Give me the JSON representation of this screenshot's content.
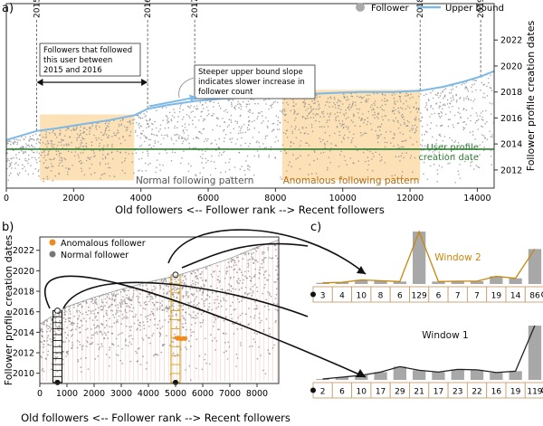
{
  "panel_labels": {
    "a": "a)",
    "b": "b)",
    "c": "c)"
  },
  "chart_data": [
    {
      "type": "scatter",
      "panel": "a",
      "xlabel": "Old followers <-- Follower rank --> Recent followers",
      "ylabel": "Follower profile creation dates",
      "xlim": [
        0,
        14500
      ],
      "ylim": [
        2010.6,
        2024.8
      ],
      "xticks": [
        0,
        2000,
        4000,
        6000,
        8000,
        10000,
        12000,
        14000
      ],
      "yticks": [
        2012,
        2014,
        2016,
        2018,
        2020,
        2022
      ],
      "legend": {
        "placement": "top-right",
        "items": [
          {
            "label": "Follower",
            "marker": "circle",
            "color": "#aaaaaa"
          },
          {
            "label": "Upper bound",
            "marker": "line",
            "color": "#7db9e8"
          }
        ]
      },
      "upper_bound": {
        "x": [
          0,
          900,
          1500,
          2200,
          3000,
          3800,
          4200,
          4800,
          5600,
          6500,
          7500,
          8500,
          9500,
          10500,
          11500,
          12300,
          13000,
          13600,
          14100,
          14500
        ],
        "y": [
          2014.3,
          2015.0,
          2015.2,
          2015.5,
          2015.8,
          2016.2,
          2016.7,
          2017.0,
          2017.3,
          2017.5,
          2017.6,
          2017.8,
          2017.9,
          2018.0,
          2018.0,
          2018.1,
          2018.4,
          2018.8,
          2019.2,
          2019.6
        ]
      },
      "year_markers": [
        {
          "label": "2015",
          "x": 900
        },
        {
          "label": "2016",
          "x": 4200
        },
        {
          "label": "2017",
          "x": 5600
        },
        {
          "label": "2018",
          "x": 12300
        },
        {
          "label": "2019",
          "x": 14100
        }
      ],
      "shaded_regions": [
        {
          "label": "Normal following pattern",
          "x": [
            1000,
            3800
          ]
        },
        {
          "label": "Anomalous following pattern",
          "x": [
            8200,
            12300
          ]
        }
      ],
      "horizontal_line": {
        "label_line1": "User profile",
        "label_line2": "creation date",
        "y": 2013.6,
        "color": "#2e7d32"
      },
      "annotations": [
        {
          "id": "followers_between",
          "lines": [
            "Followers that followed",
            "this user between",
            "2015 and 2016"
          ]
        },
        {
          "id": "steeper_slope",
          "lines": [
            "Steeper upper bound slope",
            "indicates slower increase in",
            "follower count"
          ]
        }
      ]
    },
    {
      "type": "scatter",
      "panel": "b",
      "xlabel": "Old followers <-- Follower rank --> Recent followers",
      "ylabel": "Follower profile creation dates",
      "xlim": [
        0,
        8800
      ],
      "ylim": [
        2009,
        2023.3
      ],
      "xticks": [
        0,
        1000,
        2000,
        3000,
        4000,
        5000,
        6000,
        7000,
        8000
      ],
      "yticks": [
        2010,
        2012,
        2014,
        2016,
        2018,
        2020,
        2022
      ],
      "legend": {
        "placement": "top-left",
        "items": [
          {
            "label": "Anomalous follower",
            "color": "#f08a1c"
          },
          {
            "label": "Normal follower",
            "color": "#777777"
          }
        ]
      },
      "upper_bound": {
        "x": [
          0,
          1000,
          2000,
          3000,
          4000,
          5000,
          6000,
          7000,
          8000,
          8800
        ],
        "y": [
          2014.8,
          2016.5,
          2017.4,
          2018.2,
          2018.9,
          2019.5,
          2020.3,
          2021.2,
          2022.3,
          2023.0
        ]
      },
      "windows": [
        {
          "name": "Window 1",
          "x": 650,
          "y_top": 2016.1,
          "y_bottom": 2009.1,
          "color": "#000000"
        },
        {
          "name": "Window 2",
          "x": 5000,
          "y_top": 2019.6,
          "y_bottom": 2009.1,
          "color": "#c8960a"
        }
      ],
      "anomalous_cluster": {
        "x": [
          5000,
          5400
        ],
        "y": 2013.4
      }
    },
    {
      "type": "bar",
      "panel": "c",
      "windows": [
        {
          "name": "Window 2",
          "values": [
            3,
            4,
            10,
            8,
            6,
            129,
            6,
            7,
            7,
            19,
            14,
            86
          ],
          "line_color": "#c8860a"
        },
        {
          "name": "Window 1",
          "values": [
            2,
            6,
            10,
            17,
            29,
            21,
            17,
            23,
            22,
            16,
            19,
            119
          ],
          "line_color": "#222222"
        }
      ]
    }
  ]
}
